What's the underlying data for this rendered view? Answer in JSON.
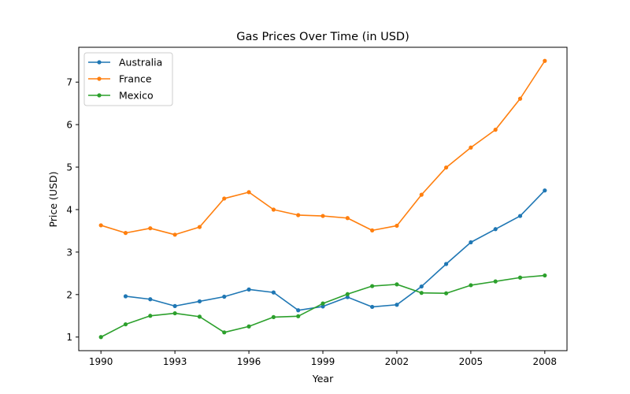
{
  "chart_data": {
    "type": "line",
    "title": "Gas Prices Over Time (in USD)",
    "xlabel": "Year",
    "ylabel": "Price (USD)",
    "xlim": [
      1989.1,
      2008.9
    ],
    "ylim": [
      0.68,
      7.82
    ],
    "x_ticks": [
      1990,
      1993,
      1996,
      1999,
      2002,
      2005,
      2008
    ],
    "y_ticks": [
      1,
      2,
      3,
      4,
      5,
      6,
      7
    ],
    "grid": false,
    "legend_position": "top-left",
    "series": [
      {
        "name": "Australia",
        "color": "#1f77b4",
        "x": [
          1991,
          1992,
          1993,
          1994,
          1995,
          1996,
          1997,
          1998,
          1999,
          2000,
          2001,
          2002,
          2003,
          2004,
          2005,
          2006,
          2007,
          2008
        ],
        "values": [
          1.96,
          1.89,
          1.73,
          1.84,
          1.95,
          2.12,
          2.05,
          1.63,
          1.72,
          1.94,
          1.71,
          1.76,
          2.19,
          2.72,
          3.23,
          3.54,
          3.85,
          4.45
        ]
      },
      {
        "name": "France",
        "color": "#ff7f0e",
        "x": [
          1990,
          1991,
          1992,
          1993,
          1994,
          1995,
          1996,
          1997,
          1998,
          1999,
          2000,
          2001,
          2002,
          2003,
          2004,
          2005,
          2006,
          2007,
          2008
        ],
        "values": [
          3.63,
          3.45,
          3.56,
          3.41,
          3.59,
          4.26,
          4.41,
          4.0,
          3.87,
          3.85,
          3.8,
          3.51,
          3.62,
          4.35,
          4.99,
          5.46,
          5.88,
          6.61,
          7.5
        ]
      },
      {
        "name": "Mexico",
        "color": "#2ca02c",
        "x": [
          1990,
          1991,
          1992,
          1993,
          1994,
          1995,
          1996,
          1997,
          1998,
          1999,
          2000,
          2001,
          2002,
          2003,
          2004,
          2005,
          2006,
          2007,
          2008
        ],
        "values": [
          1.0,
          1.3,
          1.5,
          1.56,
          1.48,
          1.11,
          1.25,
          1.47,
          1.49,
          1.79,
          2.01,
          2.2,
          2.24,
          2.04,
          2.03,
          2.22,
          2.31,
          2.4,
          2.45
        ]
      }
    ]
  }
}
